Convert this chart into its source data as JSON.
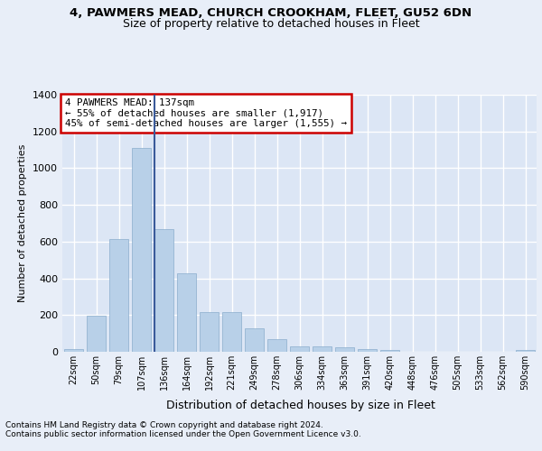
{
  "title1": "4, PAWMERS MEAD, CHURCH CROOKHAM, FLEET, GU52 6DN",
  "title2": "Size of property relative to detached houses in Fleet",
  "xlabel": "Distribution of detached houses by size in Fleet",
  "ylabel": "Number of detached properties",
  "bar_color": "#b8d0e8",
  "bar_edge_color": "#8aadcc",
  "bg_color": "#dce6f5",
  "grid_color": "#ffffff",
  "fig_bg_color": "#e8eef8",
  "annotation_box_edgecolor": "#cc0000",
  "property_line_color": "#3a5a9a",
  "categories": [
    "22sqm",
    "50sqm",
    "79sqm",
    "107sqm",
    "136sqm",
    "164sqm",
    "192sqm",
    "221sqm",
    "249sqm",
    "278sqm",
    "306sqm",
    "334sqm",
    "363sqm",
    "391sqm",
    "420sqm",
    "448sqm",
    "476sqm",
    "505sqm",
    "533sqm",
    "562sqm",
    "590sqm"
  ],
  "values": [
    15,
    195,
    615,
    1110,
    670,
    425,
    215,
    215,
    130,
    70,
    30,
    30,
    25,
    15,
    10,
    0,
    0,
    0,
    0,
    0,
    10
  ],
  "annotation_line1": "4 PAWMERS MEAD: 137sqm",
  "annotation_line2": "← 55% of detached houses are smaller (1,917)",
  "annotation_line3": "45% of semi-detached houses are larger (1,555) →",
  "property_bin_index": 4,
  "ylim": [
    0,
    1400
  ],
  "yticks": [
    0,
    200,
    400,
    600,
    800,
    1000,
    1200,
    1400
  ],
  "footer1": "Contains HM Land Registry data © Crown copyright and database right 2024.",
  "footer2": "Contains public sector information licensed under the Open Government Licence v3.0."
}
